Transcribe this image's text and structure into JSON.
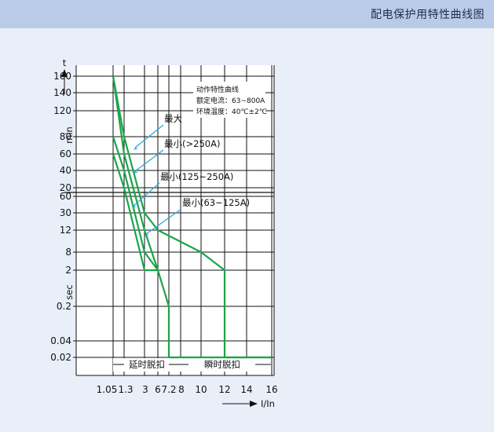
{
  "header": {
    "title": "配电保护用特性曲线图"
  },
  "chart_data": {
    "type": "line",
    "info_box": [
      "动作特性曲线",
      "额定电流：63~800A",
      "环境温度：40℃±2℃"
    ],
    "y_axis": {
      "symbol": "t",
      "min_ticks": [
        "160",
        "140",
        "120",
        "80",
        "60",
        "40",
        "20"
      ],
      "min_unit": "min",
      "sec_ticks": [
        "60",
        "30",
        "12",
        "8",
        "2",
        "0.2",
        "0.04",
        "0.02"
      ],
      "sec_unit": "sec"
    },
    "x_axis": {
      "ticks": [
        "1.05",
        "1.3",
        "3",
        "6",
        "7.2",
        "8",
        "10",
        "12",
        "14",
        "16"
      ],
      "label": "I/In"
    },
    "zones": [
      "延时脱扣",
      "瞬时脱扣"
    ],
    "series": [
      {
        "name": "最大",
        "points": [
          [
            1.05,
            "160min"
          ],
          [
            1.3,
            "80min"
          ],
          [
            3,
            "30s"
          ],
          [
            6,
            "12s"
          ],
          [
            10,
            "8s"
          ],
          [
            12,
            "2s"
          ],
          [
            12,
            "0.02s"
          ],
          [
            16,
            "0.02s"
          ]
        ]
      },
      {
        "name": "最小(>250A)",
        "points": [
          [
            1.05,
            "160min"
          ],
          [
            1.3,
            "60min"
          ],
          [
            3,
            "12s"
          ],
          [
            6,
            "2s"
          ],
          [
            7.2,
            "0.2s"
          ],
          [
            7.2,
            "0.02s"
          ],
          [
            16,
            "0.02s"
          ]
        ]
      },
      {
        "name": "最小(125~250A)",
        "points": [
          [
            1.05,
            "80min"
          ],
          [
            1.3,
            "40min"
          ],
          [
            3,
            "8s"
          ],
          [
            6,
            "2s"
          ]
        ]
      },
      {
        "name": "最小(63~125A)",
        "points": [
          [
            1.05,
            "60min"
          ],
          [
            1.3,
            "20min"
          ],
          [
            3,
            "2s"
          ],
          [
            6,
            "2s"
          ]
        ]
      }
    ],
    "colors": {
      "curve": "#1aa54a",
      "pointer": "#2aa6d9",
      "grid": "#111111"
    }
  }
}
